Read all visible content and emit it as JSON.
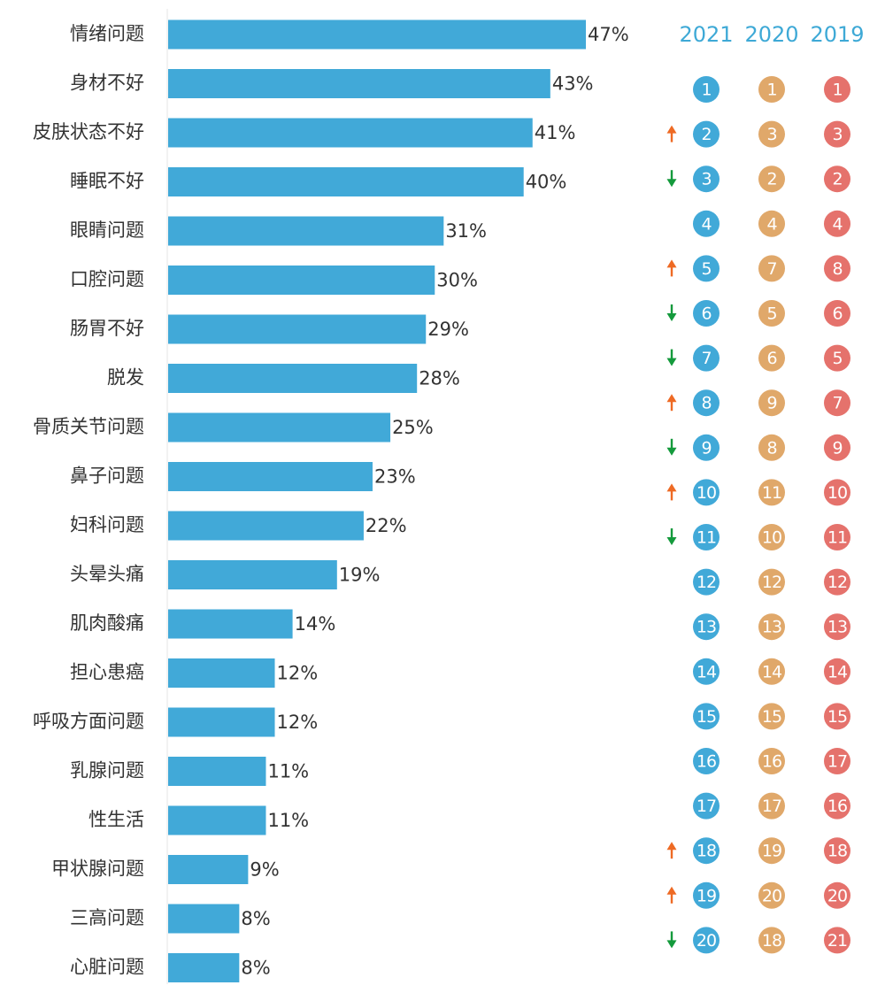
{
  "chart_data": {
    "type": "bar",
    "orientation": "horizontal",
    "categories": [
      "情绪问题",
      "身材不好",
      "皮肤状态不好",
      "睡眠不好",
      "眼睛问题",
      "口腔问题",
      "肠胃不好",
      "脱发",
      "骨质关节问题",
      "鼻子问题",
      "妇科问题",
      "头晕头痛",
      "肌肉酸痛",
      "担心患癌",
      "呼吸方面问题",
      "乳腺问题",
      "性生活",
      "甲状腺问题",
      "三高问题",
      "心脏问题"
    ],
    "values": [
      47,
      43,
      41,
      40,
      31,
      30,
      29,
      28,
      25,
      23,
      22,
      19,
      14,
      12,
      12,
      11,
      11,
      9,
      8,
      8
    ],
    "value_labels": [
      "47%",
      "43%",
      "41%",
      "40%",
      "31%",
      "30%",
      "29%",
      "28%",
      "25%",
      "23%",
      "22%",
      "19%",
      "14%",
      "12%",
      "12%",
      "11%",
      "11%",
      "9%",
      "8%",
      "8%"
    ],
    "xlim": [
      0,
      47
    ],
    "bar_color": "#41a9d8",
    "grid": false,
    "rank_table": {
      "years": [
        "2021",
        "2020",
        "2019"
      ],
      "colors": [
        "#41a9d8",
        "#e0a86a",
        "#e5726c"
      ],
      "ranks_2021": [
        "1",
        "2",
        "3",
        "4",
        "5",
        "6",
        "7",
        "8",
        "9",
        "10",
        "11",
        "12",
        "13",
        "14",
        "15",
        "16",
        "17",
        "18",
        "19",
        "20"
      ],
      "ranks_2020": [
        "1",
        "3",
        "2",
        "4",
        "7",
        "5",
        "6",
        "9",
        "8",
        "11",
        "10",
        "12",
        "13",
        "14",
        "15",
        "16",
        "17",
        "19",
        "20",
        "18"
      ],
      "ranks_2019": [
        "1",
        "3",
        "2",
        "4",
        "8",
        "6",
        "5",
        "7",
        "9",
        "10",
        "11",
        "12",
        "13",
        "14",
        "15",
        "17",
        "16",
        "18",
        "20",
        "21"
      ],
      "trend": [
        "none",
        "up",
        "down",
        "none",
        "up",
        "down",
        "down",
        "up",
        "down",
        "up",
        "down",
        "none",
        "none",
        "none",
        "none",
        "none",
        "none",
        "up",
        "up",
        "down"
      ],
      "trend_colors": {
        "up": "#ee6a24",
        "down": "#149a3c"
      }
    }
  }
}
